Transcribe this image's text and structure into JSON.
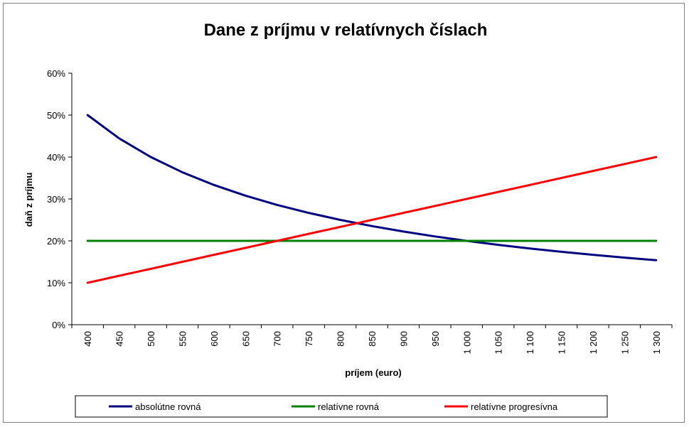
{
  "chart_data": {
    "type": "line",
    "title": "Dane z príjmu v relatívnych číslach",
    "xlabel": "príjem (euro)",
    "ylabel": "daň z príjmu",
    "x": [
      400,
      450,
      500,
      550,
      600,
      650,
      700,
      750,
      800,
      850,
      900,
      950,
      1000,
      1050,
      1100,
      1150,
      1200,
      1250,
      1300
    ],
    "x_tick_labels": [
      "400",
      "450",
      "500",
      "550",
      "600",
      "650",
      "700",
      "750",
      "800",
      "850",
      "900",
      "950",
      "1 000",
      "1 050",
      "1 100",
      "1 150",
      "1 200",
      "1 250",
      "1 300"
    ],
    "ylim": [
      0,
      0.6
    ],
    "y_ticks": [
      0,
      0.1,
      0.2,
      0.3,
      0.4,
      0.5,
      0.6
    ],
    "y_tick_labels": [
      "0%",
      "10%",
      "20%",
      "30%",
      "40%",
      "50%",
      "60%"
    ],
    "grid": false,
    "legend_position": "bottom",
    "series": [
      {
        "name": "absolútne rovná",
        "color": "#000080",
        "values": [
          0.5,
          0.4444,
          0.4,
          0.3636,
          0.3333,
          0.3077,
          0.2857,
          0.2667,
          0.25,
          0.2353,
          0.2222,
          0.2105,
          0.2,
          0.1905,
          0.1818,
          0.1739,
          0.1667,
          0.16,
          0.1538
        ]
      },
      {
        "name": "relatívne rovná",
        "color": "#008000",
        "values": [
          0.2,
          0.2,
          0.2,
          0.2,
          0.2,
          0.2,
          0.2,
          0.2,
          0.2,
          0.2,
          0.2,
          0.2,
          0.2,
          0.2,
          0.2,
          0.2,
          0.2,
          0.2,
          0.2
        ]
      },
      {
        "name": "relatívne progresívna",
        "color": "#ff0000",
        "values": [
          0.1,
          0.1167,
          0.1333,
          0.15,
          0.1667,
          0.1833,
          0.2,
          0.2167,
          0.2333,
          0.25,
          0.2667,
          0.2833,
          0.3,
          0.3167,
          0.3333,
          0.35,
          0.3667,
          0.3833,
          0.4
        ]
      }
    ]
  }
}
